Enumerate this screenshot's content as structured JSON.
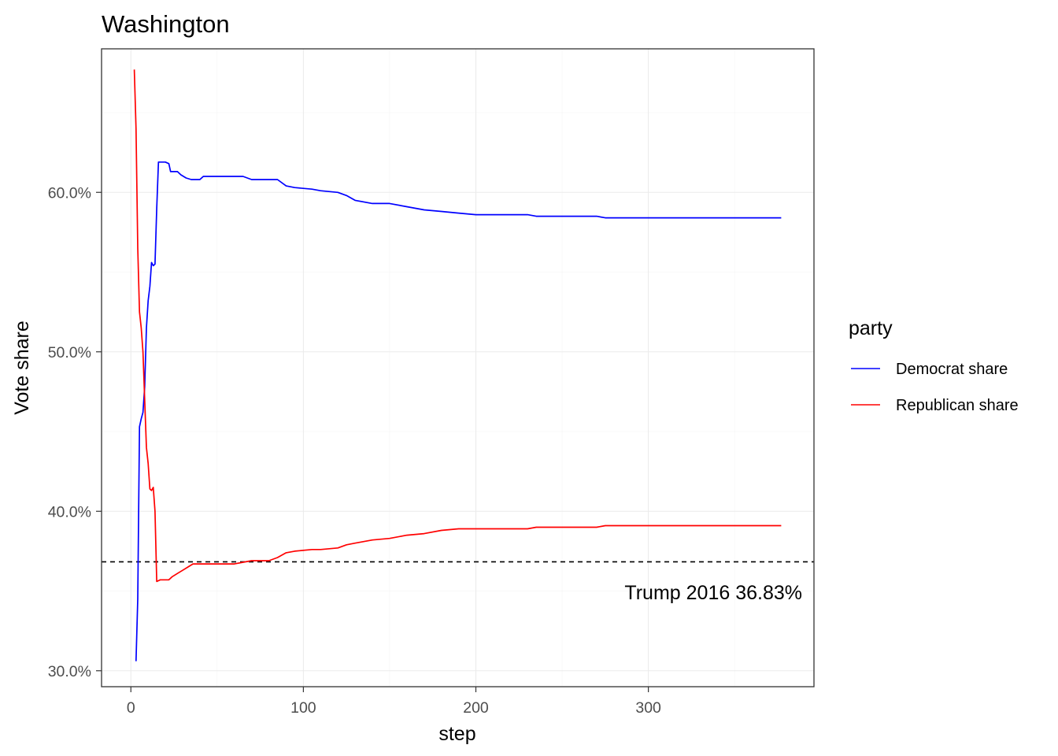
{
  "chart_data": {
    "type": "line",
    "title": "Washington",
    "xlabel": "step",
    "ylabel": "Vote share",
    "xlim": [
      -17,
      396
    ],
    "ylim": [
      0.29,
      0.69
    ],
    "x_ticks": [
      0,
      100,
      200,
      300
    ],
    "x_tick_labels": [
      "0",
      "100",
      "200",
      "300"
    ],
    "y_ticks": [
      0.3,
      0.4,
      0.5,
      0.6
    ],
    "y_tick_labels": [
      "30.0%",
      "40.0%",
      "50.0%",
      "60.0%"
    ],
    "grid": true,
    "legend": {
      "title": "party",
      "placement": "right"
    },
    "series": [
      {
        "name": "Democrat share",
        "color": "#0000ff",
        "points": [
          [
            3,
            0.306
          ],
          [
            4,
            0.345
          ],
          [
            5,
            0.453
          ],
          [
            6,
            0.458
          ],
          [
            7,
            0.462
          ],
          [
            8,
            0.478
          ],
          [
            9,
            0.515
          ],
          [
            10,
            0.532
          ],
          [
            11,
            0.541
          ],
          [
            12,
            0.556
          ],
          [
            13,
            0.554
          ],
          [
            14,
            0.555
          ],
          [
            15,
            0.59
          ],
          [
            16,
            0.619
          ],
          [
            20,
            0.619
          ],
          [
            22,
            0.618
          ],
          [
            23,
            0.613
          ],
          [
            27,
            0.613
          ],
          [
            29,
            0.611
          ],
          [
            32,
            0.609
          ],
          [
            35,
            0.608
          ],
          [
            40,
            0.608
          ],
          [
            42,
            0.61
          ],
          [
            65,
            0.61
          ],
          [
            70,
            0.608
          ],
          [
            85,
            0.608
          ],
          [
            90,
            0.604
          ],
          [
            95,
            0.603
          ],
          [
            105,
            0.602
          ],
          [
            110,
            0.601
          ],
          [
            120,
            0.6
          ],
          [
            125,
            0.598
          ],
          [
            130,
            0.595
          ],
          [
            140,
            0.593
          ],
          [
            150,
            0.593
          ],
          [
            160,
            0.591
          ],
          [
            170,
            0.589
          ],
          [
            180,
            0.588
          ],
          [
            190,
            0.587
          ],
          [
            200,
            0.586
          ],
          [
            230,
            0.586
          ],
          [
            235,
            0.585
          ],
          [
            270,
            0.585
          ],
          [
            275,
            0.584
          ],
          [
            377,
            0.584
          ]
        ]
      },
      {
        "name": "Republican share",
        "color": "#ff0000",
        "points": [
          [
            2,
            0.677
          ],
          [
            3,
            0.64
          ],
          [
            4,
            0.565
          ],
          [
            5,
            0.525
          ],
          [
            6,
            0.515
          ],
          [
            7,
            0.5
          ],
          [
            8,
            0.47
          ],
          [
            9,
            0.44
          ],
          [
            10,
            0.43
          ],
          [
            11,
            0.414
          ],
          [
            12,
            0.413
          ],
          [
            13,
            0.415
          ],
          [
            14,
            0.4
          ],
          [
            15,
            0.356
          ],
          [
            17,
            0.357
          ],
          [
            20,
            0.357
          ],
          [
            22,
            0.357
          ],
          [
            24,
            0.359
          ],
          [
            27,
            0.361
          ],
          [
            30,
            0.363
          ],
          [
            33,
            0.365
          ],
          [
            36,
            0.367
          ],
          [
            60,
            0.367
          ],
          [
            65,
            0.368
          ],
          [
            70,
            0.369
          ],
          [
            80,
            0.369
          ],
          [
            85,
            0.371
          ],
          [
            90,
            0.374
          ],
          [
            95,
            0.375
          ],
          [
            105,
            0.376
          ],
          [
            110,
            0.376
          ],
          [
            120,
            0.377
          ],
          [
            125,
            0.379
          ],
          [
            130,
            0.38
          ],
          [
            140,
            0.382
          ],
          [
            150,
            0.383
          ],
          [
            160,
            0.385
          ],
          [
            170,
            0.386
          ],
          [
            180,
            0.388
          ],
          [
            190,
            0.389
          ],
          [
            230,
            0.389
          ],
          [
            235,
            0.39
          ],
          [
            270,
            0.39
          ],
          [
            275,
            0.391
          ],
          [
            377,
            0.391
          ]
        ]
      }
    ],
    "reference_line": {
      "y": 0.3683,
      "style": "dashed",
      "color": "#000000",
      "label": "Trump 2016 36.83%"
    }
  }
}
